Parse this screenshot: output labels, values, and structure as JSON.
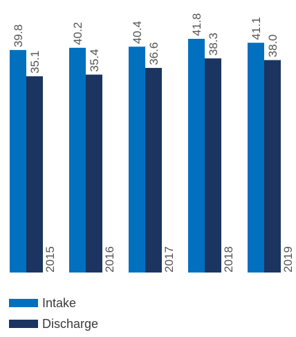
{
  "chart_data": {
    "type": "bar",
    "categories": [
      "2015",
      "2016",
      "2017",
      "2018",
      "2019"
    ],
    "series": [
      {
        "name": "Intake",
        "color": "#0070bf",
        "values": [
          39.8,
          40.2,
          40.4,
          41.8,
          41.1
        ]
      },
      {
        "name": "Discharge",
        "color": "#1b3560",
        "values": [
          35.1,
          35.4,
          36.6,
          38.3,
          38.0
        ]
      }
    ],
    "value_labels": {
      "Intake": [
        "39.8",
        "40.2",
        "40.4",
        "41.8",
        "41.1"
      ],
      "Discharge": [
        "35.1",
        "35.4",
        "36.6",
        "38.3",
        "38.0"
      ]
    },
    "ylim": [
      0,
      41.8
    ],
    "grid": false,
    "legend_position": "bottom-left",
    "title": "",
    "xlabel": "",
    "ylabel": ""
  }
}
